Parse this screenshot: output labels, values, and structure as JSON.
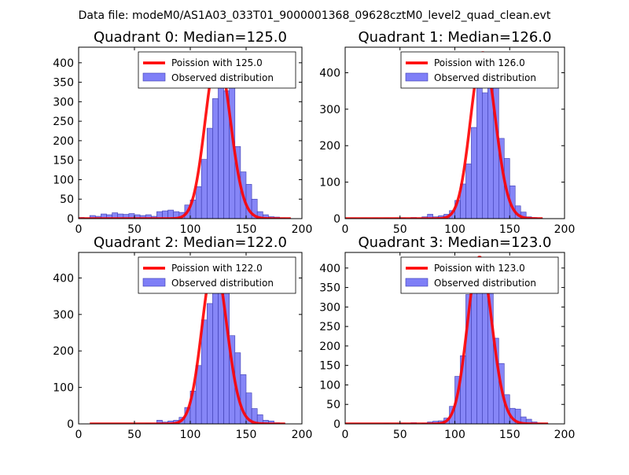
{
  "figure": {
    "suptitle": "Data file: modeM0/AS1A03_033T01_9000001368_09628cztM0_level2_quad_clean.evt"
  },
  "colors": {
    "bar_fill": "#7f7ff7",
    "bar_edge": "#3b3bb0",
    "poisson_line": "#ff0000",
    "axes": "#000000"
  },
  "chart_data": [
    {
      "type": "bar",
      "title": "Quadrant 0: Median=125.0",
      "xlim": [
        0,
        200
      ],
      "ylim": [
        0,
        440
      ],
      "xticks": [
        0,
        50,
        100,
        150,
        200
      ],
      "yticks": [
        0,
        50,
        100,
        150,
        200,
        250,
        300,
        350,
        400
      ],
      "bin_width": 5,
      "bins": [
        [
          0,
          3
        ],
        [
          5,
          2
        ],
        [
          10,
          8
        ],
        [
          15,
          6
        ],
        [
          20,
          12
        ],
        [
          25,
          10
        ],
        [
          30,
          15
        ],
        [
          35,
          12
        ],
        [
          40,
          11
        ],
        [
          45,
          13
        ],
        [
          50,
          10
        ],
        [
          55,
          8
        ],
        [
          60,
          10
        ],
        [
          65,
          6
        ],
        [
          70,
          18
        ],
        [
          75,
          20
        ],
        [
          80,
          22
        ],
        [
          85,
          18
        ],
        [
          90,
          16
        ],
        [
          95,
          35
        ],
        [
          100,
          48
        ],
        [
          105,
          82
        ],
        [
          110,
          152
        ],
        [
          115,
          232
        ],
        [
          120,
          308
        ],
        [
          125,
          350
        ],
        [
          130,
          328
        ],
        [
          135,
          342
        ],
        [
          140,
          185
        ],
        [
          145,
          120
        ],
        [
          150,
          88
        ],
        [
          155,
          50
        ],
        [
          160,
          18
        ],
        [
          165,
          10
        ],
        [
          170,
          5
        ],
        [
          175,
          4
        ],
        [
          180,
          2
        ],
        [
          185,
          1
        ]
      ],
      "poisson_mean": 125.0,
      "poisson_peak": 420,
      "legend": [
        "Poission with 125.0",
        "Observed distribution"
      ]
    },
    {
      "type": "bar",
      "title": "Quadrant 1: Median=126.0",
      "xlim": [
        0,
        200
      ],
      "ylim": [
        0,
        470
      ],
      "xticks": [
        0,
        50,
        100,
        150,
        200
      ],
      "yticks": [
        0,
        100,
        200,
        300,
        400
      ],
      "bin_width": 5,
      "bins": [
        [
          0,
          0
        ],
        [
          5,
          1
        ],
        [
          10,
          0
        ],
        [
          15,
          1
        ],
        [
          20,
          0
        ],
        [
          25,
          1
        ],
        [
          30,
          0
        ],
        [
          35,
          1
        ],
        [
          40,
          0
        ],
        [
          45,
          1
        ],
        [
          50,
          2
        ],
        [
          55,
          0
        ],
        [
          60,
          3
        ],
        [
          65,
          1
        ],
        [
          70,
          5
        ],
        [
          75,
          12
        ],
        [
          80,
          5
        ],
        [
          85,
          8
        ],
        [
          90,
          12
        ],
        [
          95,
          22
        ],
        [
          100,
          50
        ],
        [
          105,
          95
        ],
        [
          110,
          150
        ],
        [
          115,
          250
        ],
        [
          120,
          378
        ],
        [
          125,
          345
        ],
        [
          130,
          450
        ],
        [
          135,
          408
        ],
        [
          140,
          220
        ],
        [
          145,
          165
        ],
        [
          150,
          90
        ],
        [
          155,
          35
        ],
        [
          160,
          18
        ],
        [
          165,
          5
        ],
        [
          170,
          3
        ],
        [
          175,
          1
        ]
      ],
      "poisson_mean": 126.0,
      "poisson_peak": 455,
      "legend": [
        "Poission with 126.0",
        "Observed distribution"
      ]
    },
    {
      "type": "bar",
      "title": "Quadrant 2: Median=122.0",
      "xlim": [
        0,
        200
      ],
      "ylim": [
        0,
        470
      ],
      "xticks": [
        0,
        50,
        100,
        150,
        200
      ],
      "yticks": [
        0,
        100,
        200,
        300,
        400
      ],
      "bin_width": 5,
      "bins": [
        [
          10,
          0
        ],
        [
          15,
          0
        ],
        [
          20,
          0
        ],
        [
          25,
          0
        ],
        [
          30,
          0
        ],
        [
          35,
          0
        ],
        [
          40,
          0
        ],
        [
          45,
          0
        ],
        [
          50,
          0
        ],
        [
          55,
          0
        ],
        [
          60,
          1
        ],
        [
          65,
          0
        ],
        [
          70,
          10
        ],
        [
          75,
          5
        ],
        [
          80,
          8
        ],
        [
          85,
          10
        ],
        [
          90,
          18
        ],
        [
          95,
          45
        ],
        [
          100,
          90
        ],
        [
          105,
          160
        ],
        [
          110,
          285
        ],
        [
          115,
          330
        ],
        [
          120,
          445
        ],
        [
          125,
          420
        ],
        [
          130,
          420
        ],
        [
          135,
          242
        ],
        [
          140,
          195
        ],
        [
          145,
          135
        ],
        [
          150,
          85
        ],
        [
          155,
          42
        ],
        [
          160,
          25
        ],
        [
          165,
          10
        ],
        [
          170,
          8
        ],
        [
          175,
          3
        ],
        [
          180,
          1
        ]
      ],
      "poisson_mean": 122.0,
      "poisson_peak": 445,
      "legend": [
        "Poission with 122.0",
        "Observed distribution"
      ]
    },
    {
      "type": "bar",
      "title": "Quadrant 3: Median=123.0",
      "xlim": [
        0,
        200
      ],
      "ylim": [
        0,
        440
      ],
      "xticks": [
        0,
        50,
        100,
        150,
        200
      ],
      "yticks": [
        0,
        50,
        100,
        150,
        200,
        250,
        300,
        350,
        400
      ],
      "bin_width": 5,
      "bins": [
        [
          0,
          0
        ],
        [
          5,
          0
        ],
        [
          10,
          0
        ],
        [
          15,
          0
        ],
        [
          20,
          0
        ],
        [
          25,
          0
        ],
        [
          30,
          0
        ],
        [
          35,
          1
        ],
        [
          40,
          0
        ],
        [
          45,
          0
        ],
        [
          50,
          2
        ],
        [
          55,
          1
        ],
        [
          60,
          3
        ],
        [
          65,
          0
        ],
        [
          70,
          2
        ],
        [
          75,
          5
        ],
        [
          80,
          7
        ],
        [
          85,
          8
        ],
        [
          90,
          15
        ],
        [
          95,
          45
        ],
        [
          100,
          122
        ],
        [
          105,
          175
        ],
        [
          110,
          332
        ],
        [
          115,
          395
        ],
        [
          120,
          350
        ],
        [
          125,
          338
        ],
        [
          130,
          335
        ],
        [
          135,
          220
        ],
        [
          140,
          155
        ],
        [
          145,
          75
        ],
        [
          150,
          40
        ],
        [
          155,
          38
        ],
        [
          160,
          18
        ],
        [
          165,
          12
        ],
        [
          170,
          5
        ],
        [
          175,
          2
        ],
        [
          180,
          1
        ]
      ],
      "poisson_mean": 123.0,
      "poisson_peak": 428,
      "legend": [
        "Poission with 123.0",
        "Observed distribution"
      ]
    }
  ]
}
